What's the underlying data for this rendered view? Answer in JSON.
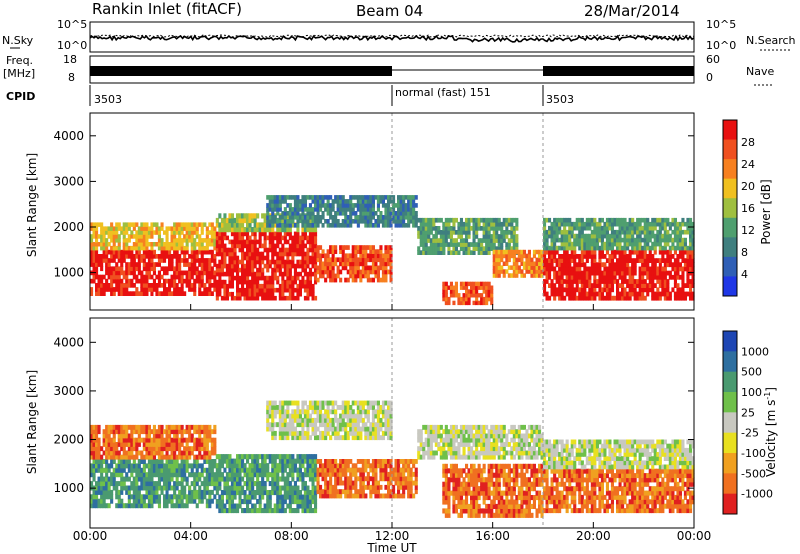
{
  "header": {
    "station": "Rankin Inlet (fitACF)",
    "beam": "Beam 04",
    "date": "28/Mar/2014"
  },
  "noise_panel": {
    "left_label": "N.Sky",
    "right_label": "N.Search",
    "left_ticks": [
      "10^5",
      "10^0"
    ],
    "right_ticks": [
      "10^5",
      "10^0"
    ]
  },
  "freq_panel": {
    "left_label_1": "Freq.",
    "left_label_2": "[MHz]",
    "right_label": "Nave",
    "left_ticks": [
      "18",
      "8"
    ],
    "right_ticks": [
      "60",
      "0"
    ]
  },
  "cpid_panel": {
    "label": "CPID",
    "segments": [
      {
        "label": "3503",
        "start_hour": 0
      },
      {
        "label": "normal (fast) 151",
        "start_hour": 12
      },
      {
        "label": "3503",
        "start_hour": 18
      }
    ]
  },
  "colors": {
    "power": [
      "#1f37e6",
      "#2f5fb6",
      "#3f7f7f",
      "#4f9f6f",
      "#9fbf3f",
      "#f0c020",
      "#f78020",
      "#f05020",
      "#e81010"
    ],
    "velocity": [
      "#1e46b4",
      "#2e6fa0",
      "#4a9a70",
      "#6fc04a",
      "#c8c8c0",
      "#e8e020",
      "#f0a020",
      "#f07020",
      "#e02020"
    ]
  },
  "chart_data": [
    {
      "type": "heatmap",
      "name": "power",
      "ylabel": "Slant Range [km]",
      "xlabel": "Time UT",
      "xlim": [
        0,
        24
      ],
      "ylim": [
        180,
        4500
      ],
      "xticks": [
        "00:00",
        "04:00",
        "08:00",
        "12:00",
        "16:00",
        "20:00",
        "00:00"
      ],
      "yticks": [
        1000,
        2000,
        3000,
        4000
      ],
      "colorbar": {
        "label": "Power [dB]",
        "ticks": [
          "4",
          "8",
          "12",
          "16",
          "20",
          "24",
          "28"
        ]
      },
      "regions": [
        {
          "t0": 0,
          "t1": 5,
          "r0": 500,
          "r1": 1500,
          "level": 8
        },
        {
          "t0": 0,
          "t1": 5,
          "r0": 1500,
          "r1": 2100,
          "level": 5
        },
        {
          "t0": 5,
          "t1": 9,
          "r0": 400,
          "r1": 1900,
          "level": 8
        },
        {
          "t0": 5,
          "t1": 9,
          "r0": 1900,
          "r1": 2300,
          "level": 4
        },
        {
          "t0": 7,
          "t1": 13,
          "r0": 2000,
          "r1": 2700,
          "level": 2
        },
        {
          "t0": 9,
          "t1": 12,
          "r0": 800,
          "r1": 1600,
          "level": 7
        },
        {
          "t0": 13,
          "t1": 17,
          "r0": 1400,
          "r1": 2200,
          "level": 3
        },
        {
          "t0": 14,
          "t1": 16,
          "r0": 300,
          "r1": 800,
          "level": 7
        },
        {
          "t0": 16,
          "t1": 18,
          "r0": 900,
          "r1": 1500,
          "level": 6
        },
        {
          "t0": 18,
          "t1": 24,
          "r0": 400,
          "r1": 1500,
          "level": 8
        },
        {
          "t0": 18,
          "t1": 24,
          "r0": 1500,
          "r1": 2200,
          "level": 3
        }
      ]
    },
    {
      "type": "heatmap",
      "name": "velocity",
      "ylabel": "Slant Range [km]",
      "xlabel": "Time UT",
      "xlim": [
        0,
        24
      ],
      "ylim": [
        180,
        4500
      ],
      "xticks": [
        "00:00",
        "04:00",
        "08:00",
        "12:00",
        "16:00",
        "20:00",
        "00:00"
      ],
      "yticks": [
        1000,
        2000,
        3000,
        4000
      ],
      "colorbar": {
        "label": "Velocity [m s^-1]",
        "ticks": [
          "1000",
          "500",
          "100",
          "25",
          "-25",
          "-100",
          "-500",
          "-1000"
        ]
      },
      "regions": [
        {
          "t0": 0,
          "t1": 5,
          "r0": 600,
          "r1": 1600,
          "level": 2
        },
        {
          "t0": 0,
          "t1": 5,
          "r0": 1600,
          "r1": 2300,
          "level": 7
        },
        {
          "t0": 5,
          "t1": 9,
          "r0": 500,
          "r1": 1700,
          "level": 2
        },
        {
          "t0": 7,
          "t1": 12,
          "r0": 2000,
          "r1": 2800,
          "level": 4
        },
        {
          "t0": 9,
          "t1": 13,
          "r0": 800,
          "r1": 1600,
          "level": 7
        },
        {
          "t0": 13,
          "t1": 18,
          "r0": 1600,
          "r1": 2300,
          "level": 4
        },
        {
          "t0": 14,
          "t1": 18,
          "r0": 400,
          "r1": 1500,
          "level": 7
        },
        {
          "t0": 18,
          "t1": 24,
          "r0": 500,
          "r1": 1400,
          "level": 7
        },
        {
          "t0": 18,
          "t1": 24,
          "r0": 1400,
          "r1": 2000,
          "level": 4
        }
      ]
    }
  ]
}
